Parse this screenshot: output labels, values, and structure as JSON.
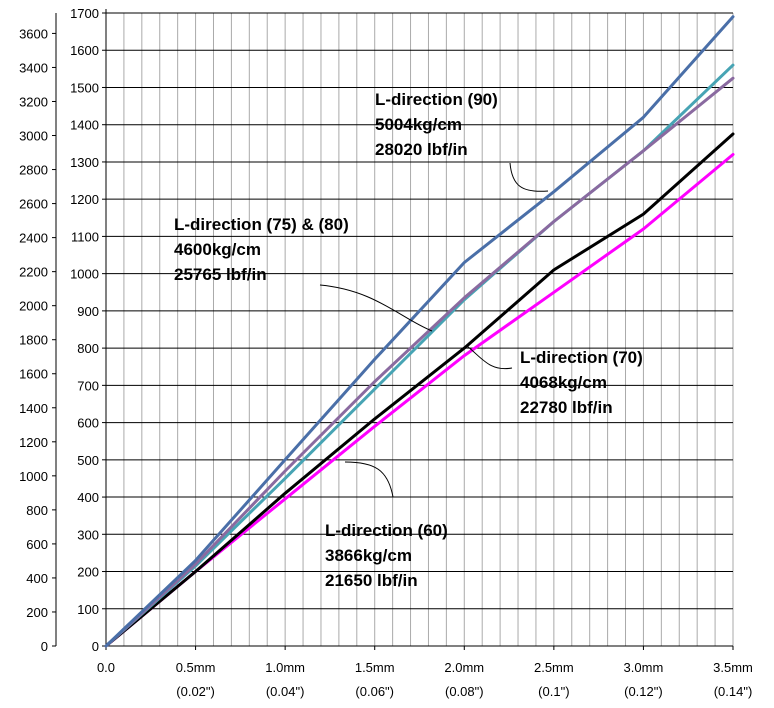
{
  "chart_data": {
    "type": "line",
    "title": "",
    "xlabel": "",
    "x_unit": "mm",
    "xlim": [
      0,
      3.5
    ],
    "grid": true,
    "legend": "none",
    "x_ticks": [
      {
        "value": 0.0,
        "label": "0.0",
        "sublabel": ""
      },
      {
        "value": 0.5,
        "label": "0.5mm",
        "sublabel": "(0.02\")"
      },
      {
        "value": 1.0,
        "label": "1.0mm",
        "sublabel": "(0.04\")"
      },
      {
        "value": 1.5,
        "label": "1.5mm",
        "sublabel": "(0.06\")"
      },
      {
        "value": 2.0,
        "label": "2.0mm",
        "sublabel": "(0.08\")"
      },
      {
        "value": 2.5,
        "label": "2.5mm",
        "sublabel": "(0.1\")"
      },
      {
        "value": 3.0,
        "label": "3.0mm",
        "sublabel": "(0.12\")"
      },
      {
        "value": 3.5,
        "label": "3.5mm",
        "sublabel": "(0.14\")"
      }
    ],
    "y_left": {
      "ylim": [
        0,
        3720
      ],
      "ticks": [
        0,
        200,
        400,
        600,
        800,
        1000,
        1200,
        1400,
        1600,
        1800,
        2000,
        2200,
        2400,
        2600,
        2800,
        3000,
        3200,
        3400,
        3600
      ]
    },
    "y_right": {
      "ylim": [
        0,
        1700
      ],
      "ticks": [
        0,
        100,
        200,
        300,
        400,
        500,
        600,
        700,
        800,
        900,
        1000,
        1100,
        1200,
        1300,
        1400,
        1500,
        1600,
        1700
      ]
    },
    "series": [
      {
        "label_lines": [
          "L-direction (90)",
          "5004kg/cm",
          "28020 lbf/in"
        ],
        "color": "#4a6fa8",
        "x": [
          0,
          0.5,
          1.0,
          1.5,
          2.0,
          2.5,
          3.0,
          3.5
        ],
        "y": [
          0,
          230,
          500,
          770,
          1030,
          1220,
          1420,
          1690
        ]
      },
      {
        "label_lines": [],
        "color": "#8a6aa0",
        "x": [
          0,
          0.5,
          1.0,
          1.5,
          2.0,
          2.5,
          3.0,
          3.5
        ],
        "y": [
          0,
          220,
          470,
          710,
          935,
          1140,
          1330,
          1525
        ]
      },
      {
        "label_lines": [
          "L-direction (75) & (80)",
          "4600kg/cm",
          "25765 lbf/in"
        ],
        "color": "#47a4b4",
        "x": [
          0,
          0.5,
          1.0,
          1.5,
          2.0,
          2.5,
          3.0,
          3.5
        ],
        "y": [
          0,
          215,
          450,
          690,
          930,
          1140,
          1330,
          1560
        ]
      },
      {
        "label_lines": [
          "L-direction (70)",
          "4068kg/cm",
          "22780 lbf/in"
        ],
        "color": "#000000",
        "x": [
          0,
          0.5,
          1.0,
          1.5,
          2.0,
          2.5,
          3.0,
          3.5
        ],
        "y": [
          0,
          200,
          410,
          610,
          800,
          1010,
          1160,
          1375
        ]
      },
      {
        "label_lines": [
          "L-direction (60)",
          "3866kg/cm",
          "21650 lbf/in"
        ],
        "color": "#ff00ff",
        "x": [
          0,
          0.5,
          1.0,
          1.5,
          2.0,
          2.5,
          3.0,
          3.5
        ],
        "y": [
          0,
          200,
          395,
          590,
          780,
          950,
          1120,
          1320
        ]
      }
    ]
  }
}
